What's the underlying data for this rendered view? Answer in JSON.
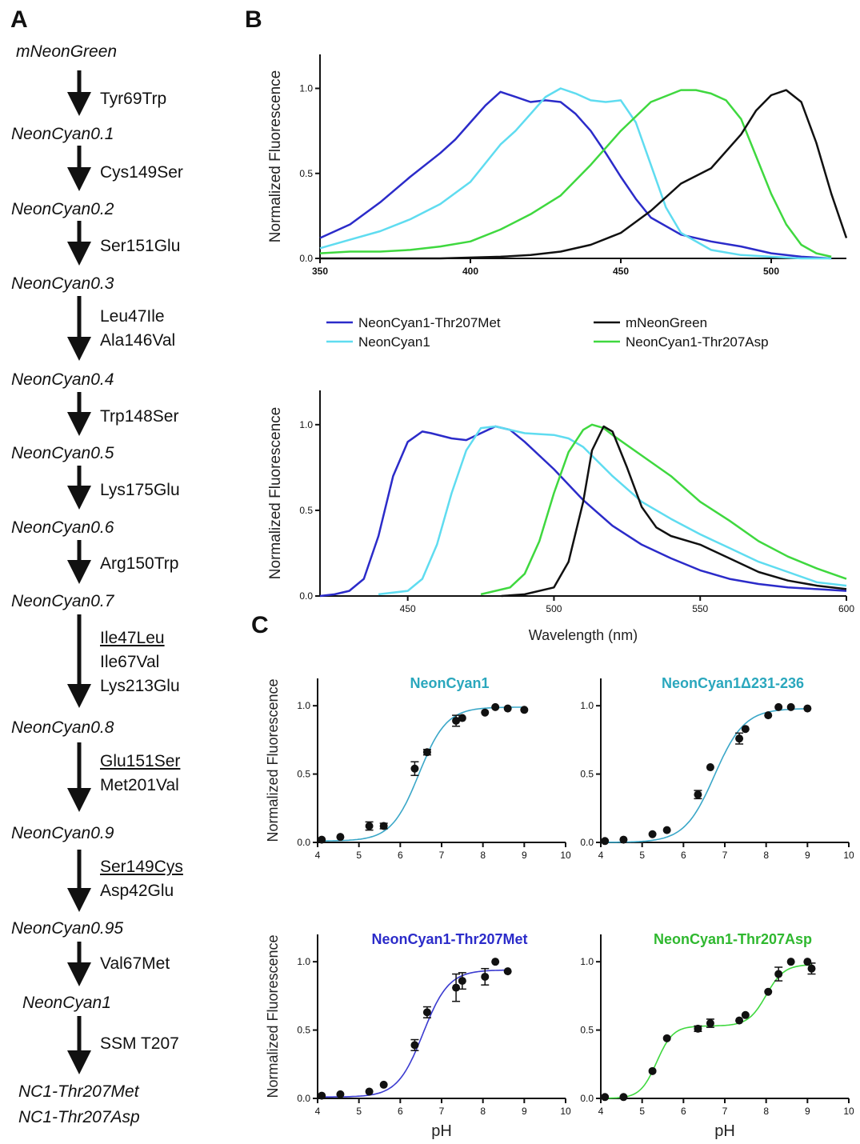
{
  "panels": {
    "A": "A",
    "B": "B",
    "C": "C"
  },
  "lineage": {
    "variants": [
      "mNeonGreen",
      "NeonCyan0.1",
      "NeonCyan0.2",
      "NeonCyan0.3",
      "NeonCyan0.4",
      "NeonCyan0.5",
      "NeonCyan0.6",
      "NeonCyan0.7",
      "NeonCyan0.8",
      "NeonCyan0.9",
      "NeonCyan0.95",
      "NeonCyan1",
      "NC1-Thr207Met",
      "NC1-Thr207Asp"
    ],
    "steps": [
      [
        {
          "text": "Tyr69Trp",
          "underline": false
        }
      ],
      [
        {
          "text": "Cys149Ser",
          "underline": false
        }
      ],
      [
        {
          "text": "Ser151Glu",
          "underline": false
        }
      ],
      [
        {
          "text": "Leu47Ile",
          "underline": false
        },
        {
          "text": "Ala146Val",
          "underline": false
        }
      ],
      [
        {
          "text": "Trp148Ser",
          "underline": false
        }
      ],
      [
        {
          "text": "Lys175Glu",
          "underline": false
        }
      ],
      [
        {
          "text": "Arg150Trp",
          "underline": false
        }
      ],
      [
        {
          "text": "Ile47Leu",
          "underline": true
        },
        {
          "text": "Ile67Val",
          "underline": false
        },
        {
          "text": "Lys213Glu",
          "underline": false
        }
      ],
      [
        {
          "text": "Glu151Ser",
          "underline": true
        },
        {
          "text": "Met201Val",
          "underline": false
        }
      ],
      [
        {
          "text": "Ser149Cys",
          "underline": true
        },
        {
          "text": "Asp42Glu",
          "underline": false
        }
      ],
      [
        {
          "text": "Val67Met",
          "underline": false
        }
      ],
      [
        {
          "text": "SSM T207",
          "underline": false
        }
      ]
    ]
  },
  "colors": {
    "thr207met": "#2b2bc9",
    "neoncyan1": "#5fdcf0",
    "mneongreen": "#111111",
    "thr207asp": "#3fd83f",
    "titleCyan": "#2aa7bd",
    "fitCyan": "#3aa7c8"
  },
  "legend": [
    {
      "name": "NeonCyan1-Thr207Met",
      "color": "#2b2bc9"
    },
    {
      "name": "NeonCyan1",
      "color": "#5fdcf0"
    },
    {
      "name": "mNeonGreen",
      "color": "#111111"
    },
    {
      "name": "NeonCyan1-Thr207Asp",
      "color": "#3fd83f"
    }
  ],
  "chart_data": [
    {
      "id": "B-excitation",
      "type": "line",
      "xlabel": "",
      "ylabel": "Normalized Fluorescence",
      "xlim": [
        350,
        525
      ],
      "ylim": [
        0,
        1.2
      ],
      "xticks": [
        350,
        400,
        450,
        500
      ],
      "yticks": [
        0.0,
        0.5,
        1.0
      ],
      "series": [
        {
          "name": "NeonCyan1-Thr207Met",
          "color": "#2b2bc9",
          "x": [
            350,
            360,
            370,
            380,
            390,
            395,
            400,
            405,
            410,
            415,
            420,
            425,
            430,
            435,
            440,
            445,
            450,
            455,
            460,
            470,
            480,
            490,
            500,
            510,
            520
          ],
          "y": [
            0.12,
            0.2,
            0.33,
            0.48,
            0.62,
            0.7,
            0.8,
            0.9,
            0.98,
            0.95,
            0.92,
            0.93,
            0.92,
            0.85,
            0.75,
            0.62,
            0.48,
            0.35,
            0.24,
            0.14,
            0.1,
            0.07,
            0.03,
            0.01,
            0.0
          ]
        },
        {
          "name": "NeonCyan1",
          "color": "#5fdcf0",
          "x": [
            350,
            360,
            370,
            380,
            390,
            400,
            410,
            415,
            420,
            425,
            430,
            435,
            440,
            445,
            450,
            455,
            460,
            465,
            470,
            480,
            490,
            500,
            510,
            520
          ],
          "y": [
            0.06,
            0.11,
            0.16,
            0.23,
            0.32,
            0.45,
            0.67,
            0.75,
            0.85,
            0.95,
            1.0,
            0.97,
            0.93,
            0.92,
            0.93,
            0.8,
            0.55,
            0.3,
            0.15,
            0.05,
            0.02,
            0.01,
            0.0,
            0.0
          ]
        },
        {
          "name": "NeonCyan1-Thr207Asp",
          "color": "#3fd83f",
          "x": [
            350,
            360,
            370,
            380,
            390,
            400,
            410,
            420,
            430,
            440,
            450,
            460,
            470,
            475,
            480,
            485,
            490,
            495,
            500,
            505,
            510,
            515,
            520
          ],
          "y": [
            0.03,
            0.04,
            0.04,
            0.05,
            0.07,
            0.1,
            0.17,
            0.26,
            0.37,
            0.55,
            0.75,
            0.92,
            0.99,
            0.99,
            0.97,
            0.93,
            0.82,
            0.6,
            0.38,
            0.2,
            0.08,
            0.03,
            0.01
          ]
        },
        {
          "name": "mNeonGreen",
          "color": "#111111",
          "x": [
            350,
            370,
            390,
            410,
            420,
            430,
            440,
            450,
            460,
            470,
            480,
            490,
            495,
            500,
            505,
            510,
            515,
            520,
            525
          ],
          "y": [
            0.0,
            0.0,
            0.0,
            0.01,
            0.02,
            0.04,
            0.08,
            0.15,
            0.28,
            0.44,
            0.53,
            0.73,
            0.87,
            0.96,
            0.99,
            0.92,
            0.68,
            0.38,
            0.12
          ]
        }
      ]
    },
    {
      "id": "B-emission",
      "type": "line",
      "xlabel": "Wavelength (nm)",
      "ylabel": "Normalized Fluorescence",
      "xlim": [
        420,
        600
      ],
      "ylim": [
        0,
        1.2
      ],
      "xticks": [
        450,
        500,
        550,
        600
      ],
      "yticks": [
        0.0,
        0.5,
        1.0
      ],
      "series": [
        {
          "name": "NeonCyan1-Thr207Met",
          "color": "#2b2bc9",
          "x": [
            420,
            425,
            430,
            435,
            440,
            445,
            450,
            455,
            458,
            465,
            470,
            475,
            480,
            485,
            490,
            500,
            510,
            520,
            530,
            540,
            550,
            560,
            570,
            580,
            590,
            600
          ],
          "y": [
            0.0,
            0.01,
            0.03,
            0.1,
            0.35,
            0.7,
            0.9,
            0.96,
            0.95,
            0.92,
            0.91,
            0.95,
            0.99,
            0.97,
            0.9,
            0.74,
            0.56,
            0.41,
            0.3,
            0.22,
            0.15,
            0.1,
            0.07,
            0.05,
            0.04,
            0.03
          ]
        },
        {
          "name": "NeonCyan1",
          "color": "#5fdcf0",
          "x": [
            440,
            450,
            455,
            460,
            465,
            470,
            475,
            480,
            485,
            490,
            500,
            505,
            510,
            520,
            530,
            540,
            550,
            560,
            570,
            580,
            590,
            600
          ],
          "y": [
            0.01,
            0.03,
            0.1,
            0.3,
            0.6,
            0.85,
            0.98,
            0.99,
            0.97,
            0.95,
            0.94,
            0.92,
            0.87,
            0.7,
            0.55,
            0.45,
            0.36,
            0.28,
            0.2,
            0.14,
            0.08,
            0.06
          ]
        },
        {
          "name": "NeonCyan1-Thr207Asp",
          "color": "#3fd83f",
          "x": [
            475,
            485,
            490,
            495,
            500,
            505,
            510,
            513,
            517,
            520,
            530,
            540,
            550,
            560,
            570,
            580,
            590,
            600
          ],
          "y": [
            0.01,
            0.05,
            0.13,
            0.32,
            0.6,
            0.84,
            0.97,
            1.0,
            0.98,
            0.94,
            0.82,
            0.7,
            0.55,
            0.44,
            0.32,
            0.23,
            0.16,
            0.1
          ]
        },
        {
          "name": "mNeonGreen",
          "color": "#111111",
          "x": [
            482,
            490,
            500,
            505,
            510,
            513,
            517,
            520,
            525,
            530,
            535,
            540,
            550,
            560,
            570,
            580,
            590,
            600
          ],
          "y": [
            0.0,
            0.01,
            0.05,
            0.2,
            0.55,
            0.85,
            0.99,
            0.96,
            0.75,
            0.52,
            0.4,
            0.35,
            0.3,
            0.22,
            0.14,
            0.09,
            0.06,
            0.04
          ]
        }
      ]
    },
    {
      "id": "C1",
      "type": "scatter",
      "title": "NeonCyan1",
      "titleColor": "#2aa7bd",
      "fitColor": "#3aa7c8",
      "xlabel": "",
      "ylabel": "Normalized Fluorescence",
      "xlim": [
        4,
        10
      ],
      "ylim": [
        0,
        1.2
      ],
      "xticks": [
        4,
        5,
        6,
        7,
        8,
        9,
        10
      ],
      "yticks": [
        0.0,
        0.5,
        1.0
      ],
      "x": [
        4.1,
        4.55,
        5.25,
        5.6,
        6.35,
        6.65,
        7.35,
        7.5,
        8.05,
        8.3,
        8.6,
        9.0
      ],
      "y": [
        0.02,
        0.04,
        0.12,
        0.12,
        0.54,
        0.66,
        0.89,
        0.91,
        0.95,
        0.99,
        0.98,
        0.97
      ],
      "err": [
        0,
        0,
        0.03,
        0.02,
        0.05,
        0.02,
        0.04,
        0,
        0,
        0,
        0,
        0
      ],
      "fit": [
        {
          "A": 0.98,
          "pKa": 6.45,
          "n": 1.3
        }
      ],
      "base": 0.01
    },
    {
      "id": "C2",
      "type": "scatter",
      "title": "NeonCyan1Δ231-236",
      "titleColor": "#2aa7bd",
      "fitColor": "#3aa7c8",
      "xlabel": "",
      "ylabel": "",
      "xlim": [
        4,
        10
      ],
      "ylim": [
        0,
        1.2
      ],
      "xticks": [
        4,
        5,
        6,
        7,
        8,
        9,
        10
      ],
      "yticks": [
        0.0,
        0.5,
        1.0
      ],
      "x": [
        4.1,
        4.55,
        5.25,
        5.6,
        6.35,
        6.65,
        7.35,
        7.5,
        8.05,
        8.3,
        8.6,
        9.0
      ],
      "y": [
        0.01,
        0.02,
        0.06,
        0.09,
        0.35,
        0.55,
        0.76,
        0.83,
        0.93,
        0.99,
        0.99,
        0.98
      ],
      "err": [
        0,
        0,
        0,
        0,
        0.03,
        0,
        0.04,
        0,
        0,
        0,
        0,
        0
      ],
      "fit": [
        {
          "A": 0.98,
          "pKa": 6.75,
          "n": 1.2
        }
      ],
      "base": 0.0
    },
    {
      "id": "C3",
      "type": "scatter",
      "title": "NeonCyan1-Thr207Met",
      "titleColor": "#2b2bc9",
      "fitColor": "#3b3bd0",
      "xlabel": "pH",
      "ylabel": "Normalized Fluorescence",
      "xlim": [
        4,
        10
      ],
      "ylim": [
        0,
        1.2
      ],
      "xticks": [
        4,
        5,
        6,
        7,
        8,
        9,
        10
      ],
      "yticks": [
        0.0,
        0.5,
        1.0
      ],
      "x": [
        4.1,
        4.55,
        5.25,
        5.6,
        6.35,
        6.65,
        7.35,
        7.5,
        8.05,
        8.3,
        8.6
      ],
      "y": [
        0.02,
        0.03,
        0.05,
        0.1,
        0.39,
        0.63,
        0.81,
        0.86,
        0.89,
        1.0,
        0.93
      ],
      "err": [
        0,
        0,
        0,
        0,
        0.04,
        0.04,
        0.1,
        0.06,
        0.06,
        0,
        0
      ],
      "fit": [
        {
          "A": 0.93,
          "pKa": 6.55,
          "n": 1.4
        }
      ],
      "base": 0.01
    },
    {
      "id": "C4",
      "type": "scatter",
      "title": "NeonCyan1-Thr207Asp",
      "titleColor": "#2fb82f",
      "fitColor": "#3fd83f",
      "xlabel": "pH",
      "ylabel": "",
      "xlim": [
        4,
        10
      ],
      "ylim": [
        0,
        1.2
      ],
      "xticks": [
        4,
        5,
        6,
        7,
        8,
        9,
        10
      ],
      "yticks": [
        0.0,
        0.5,
        1.0
      ],
      "x": [
        4.1,
        4.55,
        5.25,
        5.6,
        6.35,
        6.65,
        7.35,
        7.5,
        8.05,
        8.3,
        8.6,
        9.0,
        9.1
      ],
      "y": [
        0.01,
        0.01,
        0.2,
        0.44,
        0.51,
        0.55,
        0.57,
        0.61,
        0.78,
        0.91,
        1.0,
        1.0,
        0.95
      ],
      "err": [
        0,
        0,
        0,
        0,
        0.02,
        0.03,
        0,
        0,
        0,
        0.05,
        0,
        0,
        0.04
      ],
      "fit": [
        {
          "A": 0.53,
          "pKa": 5.35,
          "n": 2.2
        },
        {
          "A": 0.45,
          "pKa": 8.0,
          "n": 2.0
        }
      ],
      "base": 0.0
    }
  ]
}
